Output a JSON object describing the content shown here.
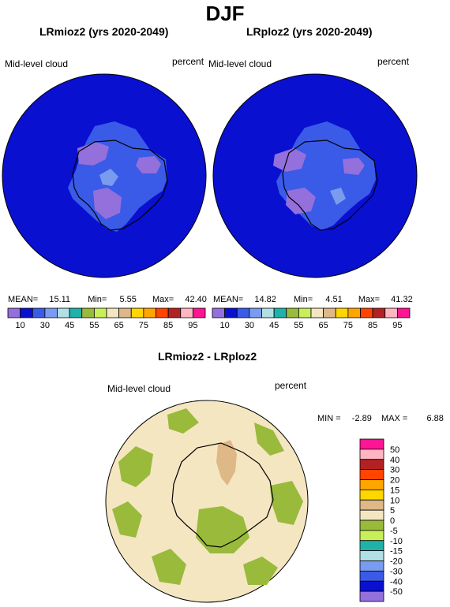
{
  "page_title": "DJF",
  "panels": [
    {
      "title": "LRmioz2 (yrs 2020-2049)",
      "variable": "Mid-level cloud",
      "units": "percent",
      "stats": {
        "mean_label": "MEAN=",
        "mean": "15.11",
        "min_label": "Min=",
        "min": "5.55",
        "max_label": "Max=",
        "max": "42.40"
      }
    },
    {
      "title": "LRploz2 (yrs 2020-2049)",
      "variable": "Mid-level cloud",
      "units": "percent",
      "stats": {
        "mean_label": "MEAN=",
        "mean": "14.82",
        "min_label": "Min=",
        "min": "4.51",
        "max_label": "Max=",
        "max": "41.32"
      }
    }
  ],
  "top_colorbar": {
    "colors": [
      "#9370db",
      "#0a10d0",
      "#3a5ae8",
      "#7a9cf0",
      "#b0e0e6",
      "#20b2aa",
      "#9aba3c",
      "#c8ef5a",
      "#f5e6c2",
      "#deb887",
      "#ffd700",
      "#ffa500",
      "#ff4500",
      "#b22222",
      "#ffb6c1",
      "#ff1493"
    ],
    "ticks": [
      "10",
      "30",
      "45",
      "55",
      "65",
      "75",
      "85",
      "95"
    ]
  },
  "diff_panel": {
    "title": "LRmioz2 - LRploz2",
    "variable": "Mid-level cloud",
    "units": "percent",
    "stats": {
      "min_label": "MIN =",
      "min": "-2.89",
      "max_label": "MAX =",
      "max": "6.88"
    }
  },
  "diff_colorbar": {
    "colors": [
      "#ff1493",
      "#ffb6c1",
      "#b22222",
      "#ff4500",
      "#ffa500",
      "#ffd700",
      "#deb887",
      "#f5e6c2",
      "#9aba3c",
      "#c8ef5a",
      "#20b2aa",
      "#b0e0e6",
      "#7a9cf0",
      "#3a5ae8",
      "#0a10d0",
      "#9370db"
    ],
    "ticks": [
      "50",
      "40",
      "30",
      "20",
      "15",
      "10",
      "5",
      "0",
      "-5",
      "-10",
      "-15",
      "-20",
      "-30",
      "-40",
      "-50"
    ]
  },
  "colors": {
    "ocean_cloud": "#0a10d0",
    "diff_background": "#f5e6c2",
    "diff_positive": "#9aba3c",
    "diff_strong": "#deb887"
  }
}
